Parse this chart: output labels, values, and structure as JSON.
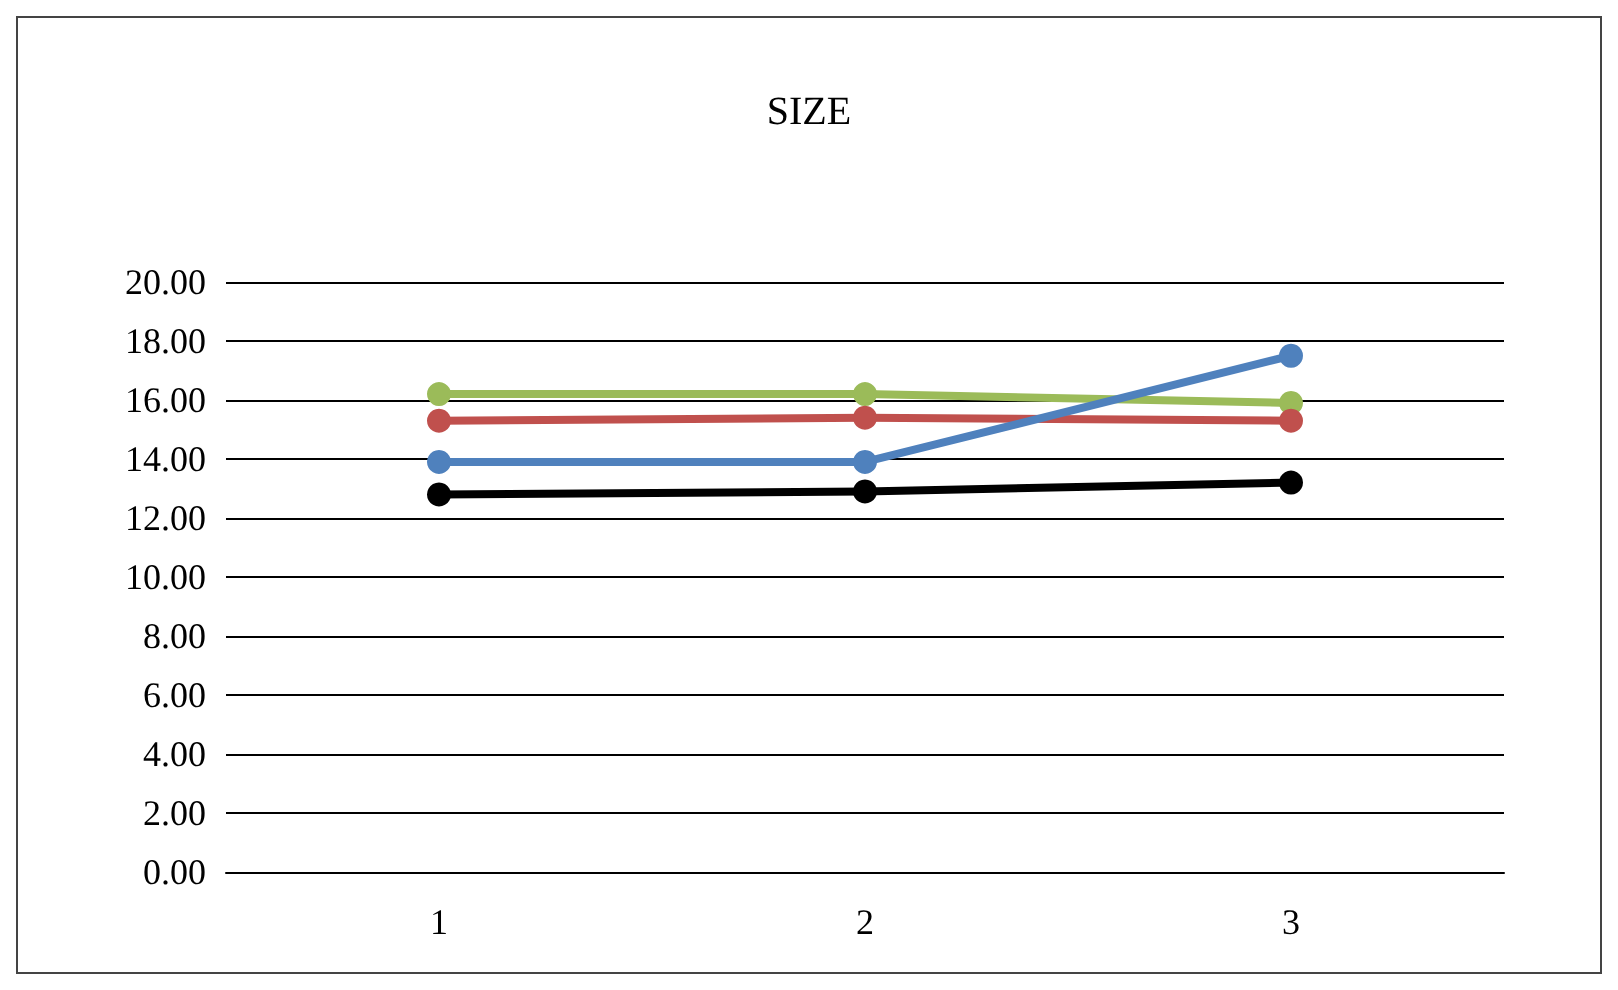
{
  "chart_data": {
    "type": "line",
    "title": "SIZE",
    "categories": [
      "1",
      "2",
      "3"
    ],
    "series": [
      {
        "color": "#9bbb59",
        "values": [
          16.2,
          16.2,
          15.9
        ]
      },
      {
        "color": "#c0504d",
        "values": [
          15.3,
          15.4,
          15.3
        ]
      },
      {
        "color": "#4f81bd",
        "values": [
          13.9,
          13.9,
          17.5
        ]
      },
      {
        "color": "#000000",
        "values": [
          12.8,
          12.9,
          13.2
        ]
      }
    ],
    "ylim": [
      0,
      20
    ],
    "yticks": [
      {
        "value": 0,
        "label": "0.00"
      },
      {
        "value": 2,
        "label": "2.00"
      },
      {
        "value": 4,
        "label": "4.00"
      },
      {
        "value": 6,
        "label": "6.00"
      },
      {
        "value": 8,
        "label": "8.00"
      },
      {
        "value": 10,
        "label": "10.00"
      },
      {
        "value": 12,
        "label": "12.00"
      },
      {
        "value": 14,
        "label": "14.00"
      },
      {
        "value": 16,
        "label": "16.00"
      },
      {
        "value": 18,
        "label": "18.00"
      },
      {
        "value": 20,
        "label": "20.00"
      }
    ],
    "grid": "y",
    "marker": "circle"
  }
}
